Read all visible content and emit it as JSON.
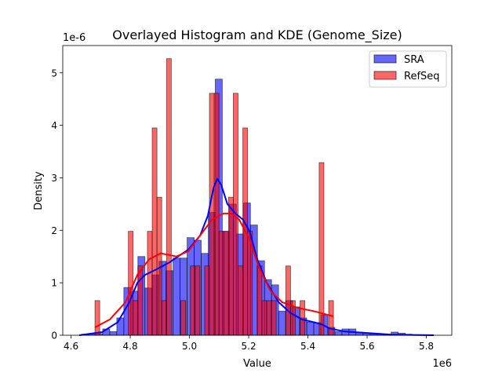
{
  "chart_data": {
    "type": "bar",
    "title": "Overlayed Histogram and KDE (Genome_Size)",
    "xlabel": "Value",
    "ylabel": "Density",
    "x_offset_label": "1e6",
    "y_offset_label": "1e-6",
    "xlim": [
      4.572,
      5.886
    ],
    "ylim": [
      0,
      5.52
    ],
    "x_ticks": [
      4.6,
      4.8,
      5.0,
      5.2,
      5.4,
      5.6,
      5.8
    ],
    "x_tick_labels": [
      "4.6",
      "4.8",
      "5.0",
      "5.2",
      "5.4",
      "5.6",
      "5.8"
    ],
    "y_ticks": [
      0,
      1,
      2,
      3,
      4,
      5
    ],
    "y_tick_labels": [
      "0",
      "1",
      "2",
      "3",
      "4",
      "5"
    ],
    "grid": false,
    "legend_position": "top-right",
    "series": [
      {
        "name": "SRA",
        "color": "#0000ff",
        "bin_start": 4.6357,
        "bin_width": 0.02376,
        "values": [
          0.02,
          0.02,
          0.03,
          0.12,
          0.07,
          0.33,
          0.91,
          0.84,
          1.5,
          0.9,
          1.15,
          1.41,
          1.23,
          1.47,
          1.47,
          1.86,
          1.81,
          1.56,
          2.34,
          4.88,
          1.98,
          2.5,
          1.93,
          2.52,
          2.1,
          1.42,
          1.06,
          0.96,
          0.46,
          0.66,
          0.54,
          0.33,
          0.25,
          0.24,
          0.39,
          0.15,
          0.07,
          0.12,
          0.12,
          0.06,
          0.04,
          0.02,
          0.02,
          0.02,
          0.06,
          0.04,
          0.02,
          0.01,
          0.01,
          0.01
        ],
        "kde": [
          [
            4.628,
            0
          ],
          [
            4.705,
            0.06
          ],
          [
            4.758,
            0.25
          ],
          [
            4.797,
            0.63
          ],
          [
            4.824,
            1.0
          ],
          [
            4.85,
            1.15
          ],
          [
            4.89,
            1.26
          ],
          [
            4.93,
            1.38
          ],
          [
            4.969,
            1.53
          ],
          [
            4.996,
            1.63
          ],
          [
            5.036,
            1.9
          ],
          [
            5.062,
            2.28
          ],
          [
            5.081,
            2.8
          ],
          [
            5.094,
            2.98
          ],
          [
            5.107,
            2.87
          ],
          [
            5.128,
            2.5
          ],
          [
            5.155,
            2.32
          ],
          [
            5.181,
            2.2
          ],
          [
            5.203,
            1.98
          ],
          [
            5.229,
            1.45
          ],
          [
            5.261,
            1.0
          ],
          [
            5.301,
            0.63
          ],
          [
            5.34,
            0.43
          ],
          [
            5.38,
            0.3
          ],
          [
            5.42,
            0.25
          ],
          [
            5.446,
            0.21
          ],
          [
            5.473,
            0.13
          ],
          [
            5.526,
            0.07
          ],
          [
            5.605,
            0.04
          ],
          [
            5.685,
            0.01
          ],
          [
            5.825,
            0
          ]
        ]
      },
      {
        "name": "RefSeq",
        "color": "#ff0000",
        "bin_start": 4.6808,
        "bin_width": 0.01611,
        "values": [
          0.66,
          0,
          0,
          0,
          0,
          0,
          0,
          1.98,
          0.66,
          1.32,
          0,
          1.98,
          3.95,
          2.63,
          0.66,
          5.27,
          0,
          0,
          0.66,
          0,
          1.32,
          1.32,
          0,
          1.32,
          4.61,
          4.61,
          1.98,
          1.98,
          2.63,
          4.61,
          1.32,
          3.95,
          1.98,
          0,
          1.32,
          0.66,
          0.66,
          0.66,
          0,
          0,
          1.32,
          0.66,
          0,
          0.66,
          0,
          0,
          0,
          3.29,
          0,
          0.66
        ],
        "kde": [
          [
            4.681,
            0.15
          ],
          [
            4.731,
            0.3
          ],
          [
            4.784,
            0.63
          ],
          [
            4.824,
            1.15
          ],
          [
            4.864,
            1.45
          ],
          [
            4.903,
            1.56
          ],
          [
            4.93,
            1.53
          ],
          [
            4.956,
            1.5
          ],
          [
            4.996,
            1.6
          ],
          [
            5.036,
            1.9
          ],
          [
            5.076,
            2.2
          ],
          [
            5.115,
            2.32
          ],
          [
            5.142,
            2.32
          ],
          [
            5.168,
            2.2
          ],
          [
            5.203,
            1.83
          ],
          [
            5.234,
            1.3
          ],
          [
            5.273,
            0.85
          ],
          [
            5.313,
            0.63
          ],
          [
            5.366,
            0.52
          ],
          [
            5.42,
            0.46
          ],
          [
            5.46,
            0.4
          ],
          [
            5.486,
            0.36
          ]
        ]
      }
    ]
  }
}
